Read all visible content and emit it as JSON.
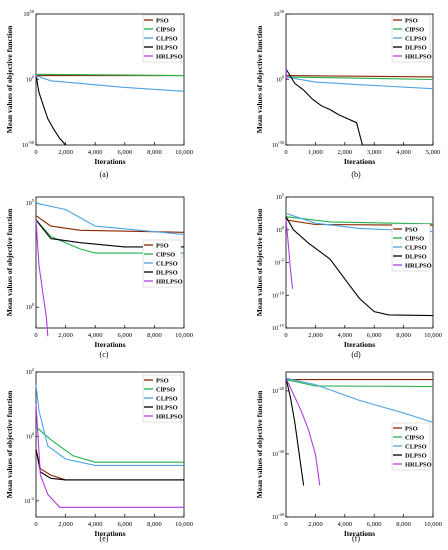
{
  "figure": {
    "ylabel": "Mean values of objective function",
    "xlabel": "Iterations"
  },
  "chart_data": [
    {
      "type": "line",
      "caption": "(a)",
      "xlabel": "Iterations",
      "ylabel": "Mean values of objective function",
      "xlim": [
        0,
        10000
      ],
      "xticks": [
        "0",
        "2,000",
        "4,000",
        "6,000",
        "8,000",
        "10,000"
      ],
      "xticks_v": [
        0,
        2000,
        4000,
        6000,
        8000,
        10000
      ],
      "ylim_log10": [
        -50,
        50
      ],
      "yticks": [
        {
          "v": 50,
          "label": "10^50"
        },
        {
          "v": 0,
          "label": "10^0"
        },
        {
          "v": -50,
          "label": "10^-50"
        }
      ],
      "legend_position": "top-right",
      "series": [
        {
          "name": "PSO",
          "color": "#8B2500",
          "x": [
            0,
            10000
          ],
          "y": [
            3,
            3
          ]
        },
        {
          "name": "ClPSO",
          "color": "#22B14C",
          "x": [
            0,
            10000
          ],
          "y": [
            4,
            3
          ]
        },
        {
          "name": "CLPSO",
          "color": "#4BA3E3",
          "x": [
            0,
            1000,
            3000,
            6000,
            10000
          ],
          "y": [
            3,
            -1,
            -3,
            -6,
            -9
          ]
        },
        {
          "name": "DLPSO",
          "color": "#000000",
          "x": [
            0,
            200,
            500,
            800,
            1200,
            1600,
            2000
          ],
          "y": [
            3,
            -10,
            -20,
            -30,
            -38,
            -45,
            -50
          ]
        },
        {
          "name": "HRLPSO",
          "color": "#B33BE0",
          "x": [
            0,
            50,
            100
          ],
          "y": [
            3,
            2,
            1
          ]
        }
      ]
    },
    {
      "type": "line",
      "caption": "(b)",
      "xlabel": "Iterations",
      "ylabel": "Mean values of objective function",
      "xlim": [
        0,
        5000
      ],
      "xticks": [
        "0",
        "1,000",
        "2,000",
        "3,000",
        "4,000",
        "5,000"
      ],
      "xticks_v": [
        0,
        1000,
        2000,
        3000,
        4000,
        5000
      ],
      "ylim_log10": [
        -50,
        50
      ],
      "yticks": [
        {
          "v": 50,
          "label": "10^50"
        },
        {
          "v": 0,
          "label": "10^0"
        },
        {
          "v": -50,
          "label": "10^-50"
        }
      ],
      "legend_position": "top-right",
      "series": [
        {
          "name": "PSO",
          "color": "#8B2500",
          "x": [
            0,
            5000
          ],
          "y": [
            3,
            2
          ]
        },
        {
          "name": "ClPSO",
          "color": "#22B14C",
          "x": [
            0,
            5000
          ],
          "y": [
            2,
            0
          ]
        },
        {
          "name": "CLPSO",
          "color": "#4BA3E3",
          "x": [
            0,
            1000,
            2500,
            5000
          ],
          "y": [
            2,
            -2,
            -4,
            -7
          ]
        },
        {
          "name": "DLPSO",
          "color": "#000000",
          "x": [
            0,
            300,
            600,
            900,
            1200,
            1500,
            1800,
            2100,
            2400,
            2600,
            5000
          ],
          "y": [
            8,
            -3,
            -8,
            -15,
            -20,
            -23,
            -27,
            -30,
            -33,
            -50,
            -50
          ]
        },
        {
          "name": "HRLPSO",
          "color": "#B33BE0",
          "x": [
            0,
            30
          ],
          "y": [
            8,
            0
          ]
        }
      ]
    },
    {
      "type": "line",
      "caption": "(c)",
      "xlabel": "Iterations",
      "ylabel": "Mean values of objective function",
      "xlim": [
        0,
        10000
      ],
      "xticks": [
        "0",
        "2,000",
        "4,000",
        "6,000",
        "8,000",
        "10,000"
      ],
      "xticks_v": [
        0,
        2000,
        4000,
        6000,
        8000,
        10000
      ],
      "ylim_log10": [
        -1,
        5.3
      ],
      "yticks": [
        {
          "v": 5,
          "label": "10^5"
        },
        {
          "v": 0,
          "label": "10^0"
        }
      ],
      "legend_position": "center-right",
      "series": [
        {
          "name": "PSO",
          "color": "#8B2500",
          "x": [
            0,
            1000,
            3000,
            10000
          ],
          "y": [
            4.4,
            3.9,
            3.7,
            3.6
          ]
        },
        {
          "name": "ClPSO",
          "color": "#22B14C",
          "x": [
            0,
            1000,
            3000,
            4000,
            10000
          ],
          "y": [
            4.2,
            3.4,
            2.8,
            2.6,
            2.6
          ]
        },
        {
          "name": "CLPSO",
          "color": "#4BA3E3",
          "x": [
            0,
            2000,
            4000,
            10000
          ],
          "y": [
            5.0,
            4.7,
            3.9,
            3.5
          ]
        },
        {
          "name": "DLPSO",
          "color": "#000000",
          "x": [
            0,
            1000,
            3000,
            6000,
            10000
          ],
          "y": [
            4.2,
            3.3,
            3.1,
            2.9,
            2.9
          ]
        },
        {
          "name": "HRLPSO",
          "color": "#B33BE0",
          "x": [
            0,
            200,
            500,
            700,
            800
          ],
          "y": [
            4.2,
            2.0,
            0.5,
            -0.5,
            -1.4
          ]
        }
      ]
    },
    {
      "type": "line",
      "caption": "(d)",
      "xlabel": "Iterations",
      "ylabel": "Mean values of objective function",
      "xlim": [
        0,
        10000
      ],
      "xticks": [
        "0",
        "2,000",
        "4,000",
        "6,000",
        "8,000",
        "10,000"
      ],
      "xticks_v": [
        0,
        2000,
        4000,
        6000,
        8000,
        10000
      ],
      "ylim_log10": [
        -15,
        5
      ],
      "yticks": [
        {
          "v": 5,
          "label": "10^5"
        },
        {
          "v": 0,
          "label": "10^0"
        },
        {
          "v": -5,
          "label": "10^-5"
        },
        {
          "v": -10,
          "label": "10^-10"
        },
        {
          "v": -15,
          "label": "10^-15"
        }
      ],
      "legend_position": "center-right",
      "series": [
        {
          "name": "PSO",
          "color": "#8B2500",
          "x": [
            0,
            2000,
            10000
          ],
          "y": [
            1.5,
            0.8,
            0.7
          ]
        },
        {
          "name": "ClPSO",
          "color": "#22B14C",
          "x": [
            0,
            3000,
            10000
          ],
          "y": [
            2.0,
            1.2,
            0.9
          ]
        },
        {
          "name": "CLPSO",
          "color": "#4BA3E3",
          "x": [
            0,
            2000,
            5000,
            10000
          ],
          "y": [
            2.5,
            1.0,
            0.2,
            -0.3
          ]
        },
        {
          "name": "DLPSO",
          "color": "#000000",
          "x": [
            0,
            500,
            1500,
            3000,
            4000,
            5000,
            6000,
            7000,
            10000
          ],
          "y": [
            2.0,
            0.0,
            -2.0,
            -4.5,
            -7.5,
            -10.5,
            -12.5,
            -13.0,
            -13.1
          ]
        },
        {
          "name": "HRLPSO",
          "color": "#B33BE0",
          "x": [
            0,
            150,
            300,
            450
          ],
          "y": [
            1.5,
            -2.0,
            -6.0,
            -9.0
          ]
        }
      ]
    },
    {
      "type": "line",
      "caption": "(e)",
      "xlabel": "Iterations",
      "ylabel": "Mean values of objective function",
      "xlim": [
        0,
        10000
      ],
      "xticks": [
        "0",
        "2,000",
        "4,000",
        "6,000",
        "8,000",
        "10,000"
      ],
      "xticks_v": [
        0,
        2000,
        4000,
        6000,
        8000,
        10000
      ],
      "ylim_log10": [
        -2.5,
        2
      ],
      "yticks": [
        {
          "v": 2,
          "label": "10^2"
        },
        {
          "v": 0,
          "label": "10^0"
        },
        {
          "v": -2,
          "label": "10^-2"
        }
      ],
      "legend_position": "top-right",
      "series": [
        {
          "name": "PSO",
          "color": "#8B2500",
          "x": [
            0,
            300,
            1000,
            2000,
            10000
          ],
          "y": [
            -0.4,
            -1.0,
            -1.2,
            -1.35,
            -1.35
          ]
        },
        {
          "name": "ClPSO",
          "color": "#22B14C",
          "x": [
            0,
            1000,
            2500,
            4000,
            10000
          ],
          "y": [
            0.3,
            -0.1,
            -0.6,
            -0.8,
            -0.8
          ]
        },
        {
          "name": "CLPSO",
          "color": "#4BA3E3",
          "x": [
            0,
            200,
            800,
            2000,
            4000,
            10000
          ],
          "y": [
            1.6,
            0.8,
            -0.3,
            -0.7,
            -0.9,
            -0.9
          ]
        },
        {
          "name": "DLPSO",
          "color": "#000000",
          "x": [
            0,
            300,
            1000,
            2000,
            10000
          ],
          "y": [
            -0.4,
            -1.1,
            -1.3,
            -1.35,
            -1.35
          ]
        },
        {
          "name": "HRLPSO",
          "color": "#B33BE0",
          "x": [
            0,
            300,
            800,
            1200,
            1600,
            10000
          ],
          "y": [
            1.0,
            -1.2,
            -1.8,
            -2.0,
            -2.2,
            -2.2
          ]
        }
      ]
    },
    {
      "type": "line",
      "caption": "(f)",
      "xlabel": "Iterations",
      "ylabel": "Mean values of objective function",
      "xlim": [
        0,
        10000
      ],
      "xticks": [
        "0",
        "2,000",
        "4,000",
        "6,000",
        "8,000",
        "10,000"
      ],
      "xticks_v": [
        0,
        2000,
        4000,
        6000,
        8000,
        10000
      ],
      "ylim_log10": [
        -40,
        -17
      ],
      "yticks": [
        {
          "v": -20,
          "label": "10^-20"
        },
        {
          "v": -30,
          "label": "10^-30"
        },
        {
          "v": -40,
          "label": "10^-40"
        }
      ],
      "legend_position": "center-right",
      "series": [
        {
          "name": "PSO",
          "color": "#8B2500",
          "x": [
            0,
            10000
          ],
          "y": [
            -18.2,
            -18.2
          ]
        },
        {
          "name": "ClPSO",
          "color": "#22B14C",
          "x": [
            0,
            2000,
            10000
          ],
          "y": [
            -18.2,
            -19.2,
            -19.3
          ]
        },
        {
          "name": "CLPSO",
          "color": "#4BA3E3",
          "x": [
            0,
            2000,
            5000,
            8000,
            10000
          ],
          "y": [
            -18.0,
            -19.0,
            -21.5,
            -23.5,
            -25.0
          ]
        },
        {
          "name": "DLPSO",
          "color": "#000000",
          "x": [
            0,
            300,
            600,
            900,
            1200
          ],
          "y": [
            -18.0,
            -21.0,
            -25.0,
            -30.0,
            -35.0
          ]
        },
        {
          "name": "HRLPSO",
          "color": "#B33BE0",
          "x": [
            0,
            500,
            1000,
            1500,
            2000,
            2300
          ],
          "y": [
            -18.0,
            -20.5,
            -23.0,
            -26.0,
            -30.0,
            -35.0
          ]
        }
      ]
    }
  ]
}
